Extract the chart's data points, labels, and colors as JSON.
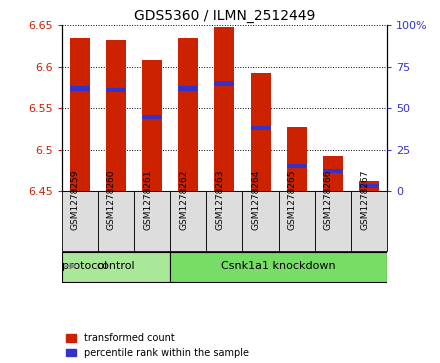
{
  "title": "GDS5360 / ILMN_2512449",
  "samples": [
    "GSM1278259",
    "GSM1278260",
    "GSM1278261",
    "GSM1278262",
    "GSM1278263",
    "GSM1278264",
    "GSM1278265",
    "GSM1278266",
    "GSM1278267"
  ],
  "bar_bottom": 6.45,
  "transformed_counts": [
    6.635,
    6.632,
    6.608,
    6.635,
    6.648,
    6.593,
    6.527,
    6.493,
    6.463
  ],
  "percentile_ranks": [
    62,
    61,
    45,
    62,
    65,
    38,
    15,
    12,
    3
  ],
  "ylim_left": [
    6.45,
    6.65
  ],
  "ylim_right": [
    0,
    100
  ],
  "yticks_left": [
    6.45,
    6.5,
    6.55,
    6.6,
    6.65
  ],
  "yticks_right": [
    0,
    25,
    50,
    75,
    100
  ],
  "bar_color": "#cc2200",
  "percentile_color": "#3333cc",
  "groups": [
    {
      "label": "control",
      "indices": [
        0,
        1,
        2
      ],
      "color": "#aae899"
    },
    {
      "label": "Csnk1a1 knockdown",
      "indices": [
        3,
        4,
        5,
        6,
        7,
        8
      ],
      "color": "#77dd66"
    }
  ],
  "protocol_label": "protocol",
  "legend_items": [
    {
      "label": "transformed count",
      "color": "#cc2200"
    },
    {
      "label": "percentile rank within the sample",
      "color": "#3333cc"
    }
  ],
  "tick_color_left": "#cc2200",
  "tick_color_right": "#3333cc",
  "bar_width": 0.55,
  "blue_bar_height": 0.005,
  "sample_box_color": "#dddddd",
  "plot_area_bg": "#ffffff"
}
